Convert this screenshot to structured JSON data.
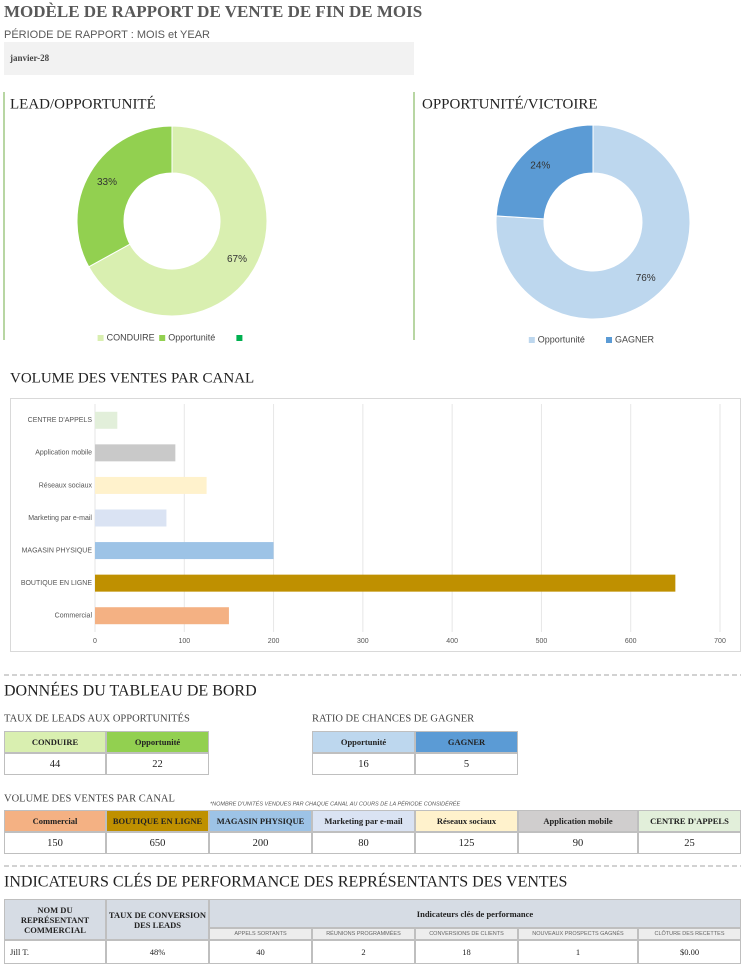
{
  "header": {
    "title": "MODÈLE DE RAPPORT DE VENTE DE FIN DE MOIS",
    "subtitle": "PÉRIODE DE RAPPORT : MOIS et YEAR",
    "period": "janvier-28"
  },
  "chart_data": [
    {
      "type": "donut",
      "title": "LEAD/OPPORTUNITÉ",
      "categories": [
        "CONDUIRE",
        "Opportunité",
        null
      ],
      "values": [
        67,
        33,
        null
      ],
      "value_labels": [
        "67%",
        "33%",
        null
      ],
      "colors": [
        "#d9efb0",
        "#92d050",
        "#00b050"
      ]
    },
    {
      "type": "donut",
      "title": "OPPORTUNITÉ/VICTOIRE",
      "categories": [
        "Opportunité",
        "GAGNER"
      ],
      "values": [
        76,
        24
      ],
      "value_labels": [
        "76%",
        "24%"
      ],
      "colors": [
        "#bdd7ee",
        "#5b9bd5"
      ]
    },
    {
      "type": "hbar",
      "title": "VOLUME DES VENTES PAR CANAL",
      "categories": [
        "CENTRE D'APPELS",
        "Application mobile",
        "Réseaux sociaux",
        "Marketing par e-mail",
        "MAGASIN PHYSIQUE",
        "BOUTIQUE EN LIGNE",
        "Commercial"
      ],
      "values": [
        25,
        90,
        125,
        80,
        200,
        650,
        150
      ],
      "colors": [
        "#e2efda",
        "#c9c9c9",
        "#fff2cc",
        "#dae3f3",
        "#9dc3e6",
        "#bf9000",
        "#f4b183"
      ],
      "xlim": [
        0,
        700
      ],
      "xticks": [
        0,
        100,
        200,
        300,
        400,
        500,
        600,
        700
      ],
      "grid": true
    }
  ],
  "dashboard": {
    "title": "DONNÉES DU TABLEAU DE BORD",
    "tables": [
      {
        "title": "TAUX DE LEADS AUX OPPORTUNITÉS",
        "columns": [
          "CONDUIRE",
          "Opportunité"
        ],
        "colors": [
          "#d9efb0",
          "#92d050"
        ],
        "rows": [
          [
            44,
            22
          ]
        ]
      },
      {
        "title": "RATIO DE CHANCES DE GAGNER",
        "columns": [
          "Opportunité",
          "GAGNER"
        ],
        "colors": [
          "#bdd7ee",
          "#5b9bd5"
        ],
        "rows": [
          [
            16,
            5
          ]
        ]
      },
      {
        "title": "VOLUME DES VENTES PAR CANAL",
        "note": "*NOMBRE D'UNITÉS VENDUES PAR CHAQUE CANAL AU COURS DE LA PÉRIODE CONSIDÉRÉE",
        "columns": [
          "Commercial",
          "BOUTIQUE EN LIGNE",
          "MAGASIN PHYSIQUE",
          "Marketing par e-mail",
          "Réseaux sociaux",
          "Application mobile",
          "CENTRE D'APPELS"
        ],
        "colors": [
          "#f4b183",
          "#bf9000",
          "#9dc3e6",
          "#dae3f3",
          "#fff2cc",
          "#d0cece",
          "#e2efda"
        ],
        "rows": [
          [
            150,
            650,
            200,
            80,
            125,
            90,
            25
          ]
        ]
      }
    ]
  },
  "kpi": {
    "title": "INDICATEURS CLÉS DE PERFORMANCE DES REPRÉSENTANTS DES VENTES",
    "columns": [
      "NOM DU REPRÉSENTANT COMMERCIAL",
      "TAUX DE CONVERSION DES LEADS"
    ],
    "group_header": "Indicateurs clés de performance",
    "subcolumns": [
      "APPELS SORTANTS",
      "RÉUNIONS PROGRAMMÉES",
      "CONVERSIONS DE CLIENTS",
      "NOUVEAUX PROSPECTS GAGNÉS",
      "CLÔTURE DES RECETTES"
    ],
    "rows": [
      [
        "Jill T.",
        "48%",
        40,
        2,
        18,
        1,
        "$0.00"
      ]
    ]
  }
}
